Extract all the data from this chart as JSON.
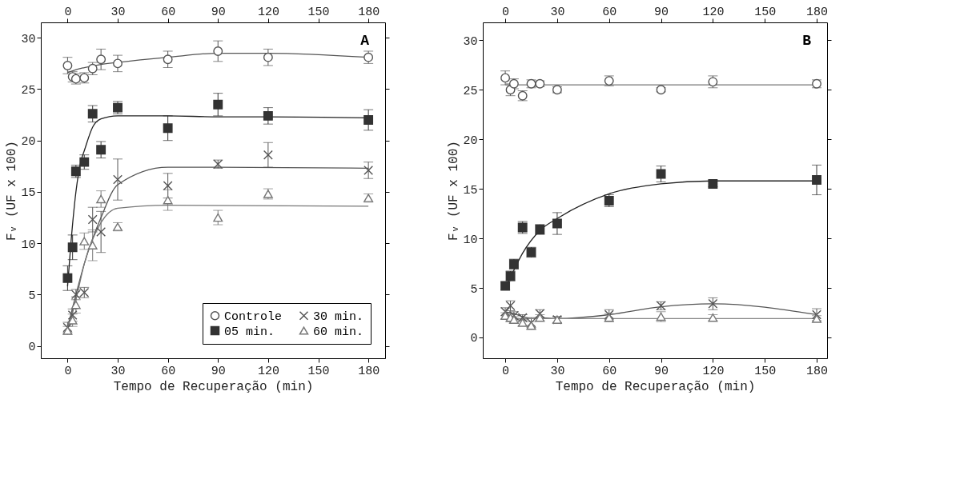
{
  "chart_data": [
    {
      "type": "scatter",
      "annotations": [
        "A"
      ],
      "xlabel": "Tempo de Recuperação (min)",
      "ylabel": "Fᵥ (UF x 100)",
      "xlim": [
        -16,
        190
      ],
      "xticks": [
        0,
        30,
        60,
        90,
        120,
        150,
        180
      ],
      "x2lim": [
        -16,
        190
      ],
      "x2ticks": [
        0,
        30,
        60,
        90,
        120,
        150,
        180
      ],
      "ylim": [
        -1.2,
        31.5
      ],
      "yticks": [
        0,
        5,
        10,
        15,
        20,
        25,
        30
      ],
      "grid": false,
      "legend": "bottom right",
      "x": [
        0,
        3,
        5,
        10,
        15,
        20,
        30,
        60,
        90,
        120,
        180
      ],
      "series": [
        {
          "name": "Controle",
          "type": "scatter",
          "marker": "circle",
          "color": "#555555",
          "values": [
            27.3,
            26.2,
            26.0,
            26.1,
            27.0,
            27.9,
            27.5,
            27.9,
            28.7,
            28.1,
            28.1
          ],
          "errors": [
            0.8,
            0.5,
            0.5,
            0.5,
            0.6,
            1.0,
            0.8,
            0.8,
            1.0,
            0.8,
            0.6
          ]
        },
        {
          "name": "05 min.",
          "type": "scatter",
          "marker": "square",
          "color": "#333333",
          "values": [
            6.6,
            9.6,
            17.0,
            17.9,
            22.6,
            19.1,
            23.2,
            21.2,
            23.5,
            22.4,
            22.0
          ],
          "errors": [
            1.2,
            1.2,
            0.6,
            0.7,
            0.8,
            0.8,
            0.6,
            1.2,
            1.1,
            0.8,
            1.0
          ]
        },
        {
          "name": "30 min.",
          "type": "scatter",
          "marker": "cross",
          "color": "#555555",
          "values": [
            1.8,
            3.0,
            5.0,
            5.2,
            12.3,
            11.1,
            16.2,
            15.6,
            17.7,
            18.6,
            17.1
          ],
          "errors": [
            0.5,
            0.6,
            0.5,
            0.5,
            1.2,
            2.0,
            2.0,
            1.2,
            0.4,
            1.2,
            0.8
          ]
        },
        {
          "name": "60 min.",
          "type": "scatter",
          "marker": "triangle",
          "color": "#777777",
          "values": [
            1.5,
            2.5,
            4.0,
            10.2,
            9.8,
            14.3,
            11.6,
            14.2,
            12.5,
            14.8,
            14.4
          ],
          "errors": [
            0.4,
            0.6,
            0.8,
            0.8,
            1.5,
            0.8,
            0.4,
            1.0,
            0.7,
            0.5,
            0.4
          ]
        },
        {
          "type": "line",
          "color": "#555555",
          "x": [
            0,
            5,
            10,
            20,
            30,
            60,
            90,
            120,
            180
          ],
          "values": [
            26.6,
            26.9,
            27.1,
            27.4,
            27.6,
            28.1,
            28.5,
            28.5,
            28.1
          ]
        },
        {
          "type": "line",
          "color": "#222222",
          "x": [
            0,
            2,
            5,
            8,
            10,
            15,
            20,
            30,
            60,
            90,
            120,
            180
          ],
          "values": [
            5.8,
            10,
            15,
            18,
            19,
            21.3,
            22.1,
            22.4,
            22.4,
            22.3,
            22.3,
            22.2
          ]
        },
        {
          "type": "line",
          "color": "#555555",
          "x": [
            0,
            5,
            10,
            20,
            30,
            60,
            90,
            180
          ],
          "values": [
            1.8,
            5,
            8,
            12.5,
            15.7,
            17.4,
            17.4,
            17.3
          ]
        },
        {
          "type": "line",
          "color": "#777777",
          "x": [
            0,
            5,
            10,
            20,
            30,
            60,
            180
          ],
          "values": [
            1.5,
            4.5,
            8,
            12,
            13.4,
            13.7,
            13.6
          ]
        }
      ]
    },
    {
      "type": "scatter",
      "annotations": [
        "B"
      ],
      "xlabel": "Tempo de Recuperação (min)",
      "ylabel": "Fᵥ (UF x 100)",
      "xlim": [
        -13,
        186
      ],
      "xticks": [
        0,
        30,
        60,
        90,
        120,
        150,
        180
      ],
      "x2lim": [
        -13,
        186
      ],
      "x2ticks": [
        0,
        30,
        60,
        90,
        120,
        150,
        180
      ],
      "ylim": [
        -2.1,
        31.8
      ],
      "yticks": [
        0,
        5,
        10,
        15,
        20,
        25,
        30
      ],
      "grid": false,
      "legend": false,
      "x": [
        0,
        3,
        5,
        10,
        15,
        20,
        30,
        60,
        90,
        120,
        180
      ],
      "series": [
        {
          "type": "scatter",
          "marker": "circle",
          "color": "#555555",
          "values": [
            26.2,
            25.0,
            25.6,
            24.4,
            25.6,
            25.6,
            25.0,
            25.9,
            25.0,
            25.8,
            25.6
          ],
          "errors": [
            0.7,
            0.6,
            0.5,
            0.5,
            0.4,
            0.3,
            0.3,
            0.5,
            0.2,
            0.6,
            0.4
          ]
        },
        {
          "type": "scatter",
          "marker": "square",
          "color": "#333333",
          "values": [
            5.2,
            6.2,
            7.4,
            11.1,
            8.6,
            10.9,
            11.5,
            13.8,
            16.5,
            15.5,
            15.9
          ],
          "errors": [
            0.4,
            0.5,
            0.5,
            0.6,
            0.5,
            0.5,
            1.1,
            0.6,
            0.8,
            0.3,
            1.5
          ]
        },
        {
          "type": "scatter",
          "marker": "cross",
          "color": "#555555",
          "values": [
            2.6,
            3.2,
            2.2,
            2.0,
            1.5,
            2.4,
            1.8,
            2.3,
            3.2,
            3.4,
            2.3
          ],
          "errors": [
            0.4,
            0.5,
            0.4,
            0.3,
            0.5,
            0.4,
            0.3,
            0.5,
            0.4,
            0.6,
            0.6
          ]
        },
        {
          "type": "scatter",
          "marker": "triangle",
          "color": "#777777",
          "values": [
            2.2,
            2.0,
            1.8,
            1.5,
            1.2,
            2.0,
            1.8,
            2.0,
            2.1,
            2.0,
            1.9
          ],
          "errors": [
            0.3,
            0.4,
            0.3,
            0.3,
            0.4,
            0.3,
            0.3,
            0.4,
            0.5,
            0.3,
            0.3
          ]
        },
        {
          "type": "line",
          "color": "#777777",
          "x": [
            0,
            180
          ],
          "values": [
            25.5,
            25.5
          ]
        },
        {
          "type": "line",
          "color": "#222222",
          "x": [
            0,
            5,
            10,
            20,
            30,
            60,
            90,
            120,
            180
          ],
          "values": [
            5,
            6.8,
            8.5,
            10.8,
            12,
            14.5,
            15.5,
            15.8,
            15.8
          ]
        },
        {
          "type": "line",
          "color": "#555555",
          "x": [
            0,
            5,
            10,
            15,
            20,
            30,
            60,
            90,
            120,
            180
          ],
          "values": [
            2.6,
            2.4,
            2.1,
            1.9,
            2.0,
            1.9,
            2.3,
            3.1,
            3.4,
            2.3
          ]
        },
        {
          "type": "line",
          "color": "#888888",
          "x": [
            0,
            180
          ],
          "values": [
            1.9,
            1.9
          ]
        }
      ]
    }
  ]
}
